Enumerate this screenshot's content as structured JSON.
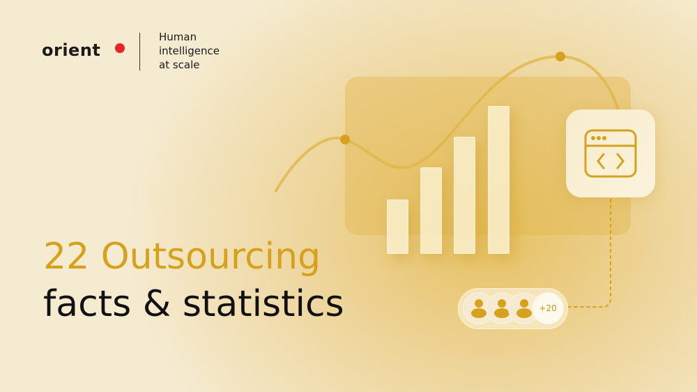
{
  "brand": {
    "logo_text": "orient",
    "logo_dot_color": "#e8232a"
  },
  "tagline": [
    "Human",
    "intelligence",
    "at scale"
  ],
  "headline": {
    "line1": "22 Outsourcing",
    "line2": "facts & statistics"
  },
  "colors": {
    "accent": "#d6a11d",
    "background": "#f5ebd0",
    "text": "#111111"
  },
  "illustration": {
    "bar_levels": [
      0.36,
      0.58,
      0.79,
      1.0
    ],
    "card_icon": "code-window-icon",
    "avatar_icon": "user-icon",
    "avatar_more": "+20"
  }
}
